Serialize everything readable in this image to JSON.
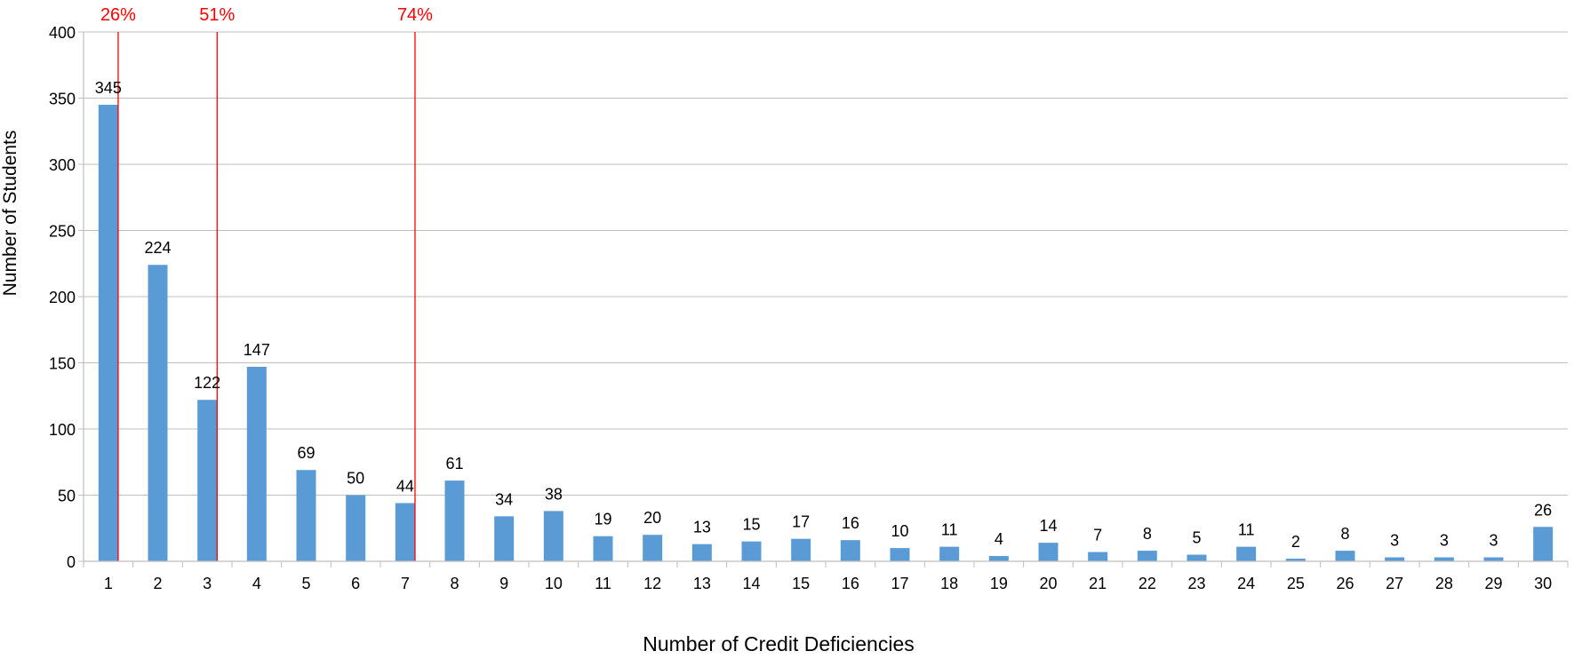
{
  "chart_data": {
    "type": "bar",
    "title": "",
    "xlabel": "Number of Credit Deficiencies",
    "ylabel": "Number of Students",
    "ylim": [
      0,
      400
    ],
    "yticks": [
      0,
      50,
      100,
      150,
      200,
      250,
      300,
      350,
      400
    ],
    "grid": "horizontal",
    "legend": "none",
    "categories": [
      "1",
      "2",
      "3",
      "4",
      "5",
      "6",
      "7",
      "8",
      "9",
      "10",
      "11",
      "12",
      "13",
      "14",
      "15",
      "16",
      "17",
      "18",
      "19",
      "20",
      "21",
      "22",
      "23",
      "24",
      "25",
      "26",
      "27",
      "28",
      "29",
      "30"
    ],
    "values": [
      345,
      224,
      122,
      147,
      69,
      50,
      44,
      61,
      34,
      38,
      19,
      20,
      13,
      15,
      17,
      16,
      10,
      11,
      4,
      14,
      7,
      8,
      5,
      11,
      2,
      8,
      3,
      3,
      3,
      26
    ],
    "data_labels": true,
    "annotations": [
      {
        "label": "26%",
        "x": 1.2
      },
      {
        "label": "51%",
        "x": 3.2
      },
      {
        "label": "74%",
        "x": 7.2
      }
    ],
    "colors": {
      "bar": "#5B9BD5",
      "annotation": "#FF0000",
      "grid": "#BFBFBF",
      "text": "#000000"
    }
  }
}
